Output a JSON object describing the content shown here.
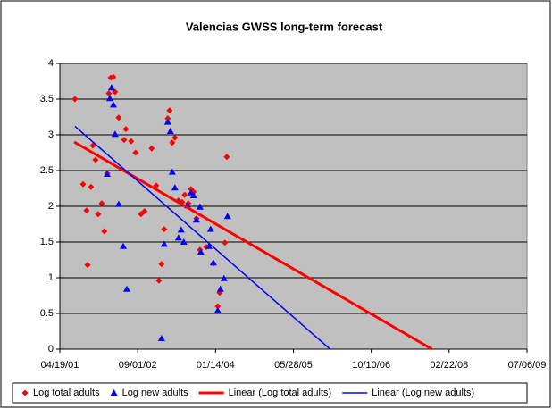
{
  "chart_data": {
    "type": "scatter",
    "title": "Valencias GWSS long-term forecast",
    "xlim": [
      37000,
      40000
    ],
    "xticks": [
      {
        "value": 37000,
        "label": "04/19/01"
      },
      {
        "value": 37500,
        "label": "09/01/02"
      },
      {
        "value": 38000,
        "label": "01/14/04"
      },
      {
        "value": 38500,
        "label": "05/28/05"
      },
      {
        "value": 39000,
        "label": "10/10/06"
      },
      {
        "value": 39500,
        "label": "02/22/08"
      },
      {
        "value": 40000,
        "label": "07/06/09"
      }
    ],
    "ylim": [
      0,
      4
    ],
    "yticks": [
      0,
      0.5,
      1,
      1.5,
      2,
      2.5,
      3,
      3.5,
      4
    ],
    "grid": true,
    "legend": "bottom",
    "series": [
      {
        "name": "Log total adults",
        "color": "#ff0000",
        "marker": "diamond",
        "x": [
          37097,
          37149,
          37172,
          37178,
          37200,
          37212,
          37229,
          37246,
          37269,
          37286,
          37304,
          37315,
          37327,
          37344,
          37355,
          37378,
          37413,
          37424,
          37458,
          37487,
          37521,
          37544,
          37590,
          37619,
          37636,
          37653,
          37670,
          37693,
          37705,
          37722,
          37739,
          37762,
          37785,
          37802,
          37825,
          37842,
          37859,
          37877,
          37900,
          37940,
          37986,
          38014,
          38026,
          38060,
          38072
        ],
        "values": [
          3.5,
          2.31,
          1.94,
          1.18,
          2.27,
          2.85,
          2.65,
          1.89,
          2.04,
          1.65,
          2.46,
          3.58,
          3.8,
          3.81,
          3.6,
          3.24,
          2.93,
          3.08,
          2.91,
          2.75,
          1.89,
          1.93,
          2.81,
          2.29,
          0.96,
          1.19,
          1.68,
          3.23,
          3.34,
          2.89,
          2.96,
          2.08,
          2.06,
          2.16,
          2.04,
          2.24,
          2.2,
          1.83,
          1.39,
          1.43,
          1.2,
          0.6,
          0.79,
          1.49,
          2.69
        ]
      },
      {
        "name": "Log new adults",
        "color": "#0000ff",
        "marker": "triangle",
        "x": [
          37304,
          37321,
          37332,
          37344,
          37355,
          37378,
          37407,
          37430,
          37653,
          37670,
          37693,
          37710,
          37722,
          37739,
          37762,
          37779,
          37796,
          37819,
          37842,
          37859,
          37877,
          37900,
          37905,
          37957,
          37968,
          37986,
          38014,
          38031,
          38054,
          38077
        ],
        "values": [
          2.45,
          3.51,
          3.66,
          3.42,
          3.01,
          2.03,
          1.44,
          0.84,
          0.15,
          1.47,
          3.18,
          3.05,
          2.48,
          2.26,
          1.56,
          1.67,
          1.5,
          2.01,
          2.19,
          2.15,
          1.81,
          1.99,
          1.36,
          1.44,
          1.68,
          1.21,
          0.54,
          0.84,
          0.99,
          1.86
        ]
      },
      {
        "name": "Linear (Log total adults)",
        "color": "#ff0000",
        "line": 3,
        "x": [
          37092,
          39390
        ],
        "values": [
          2.9,
          0
        ]
      },
      {
        "name": "Linear (Log new adults)",
        "color": "#0000ff",
        "line": 1.5,
        "x": [
          37097,
          38736
        ],
        "values": [
          3.12,
          0
        ]
      }
    ]
  }
}
